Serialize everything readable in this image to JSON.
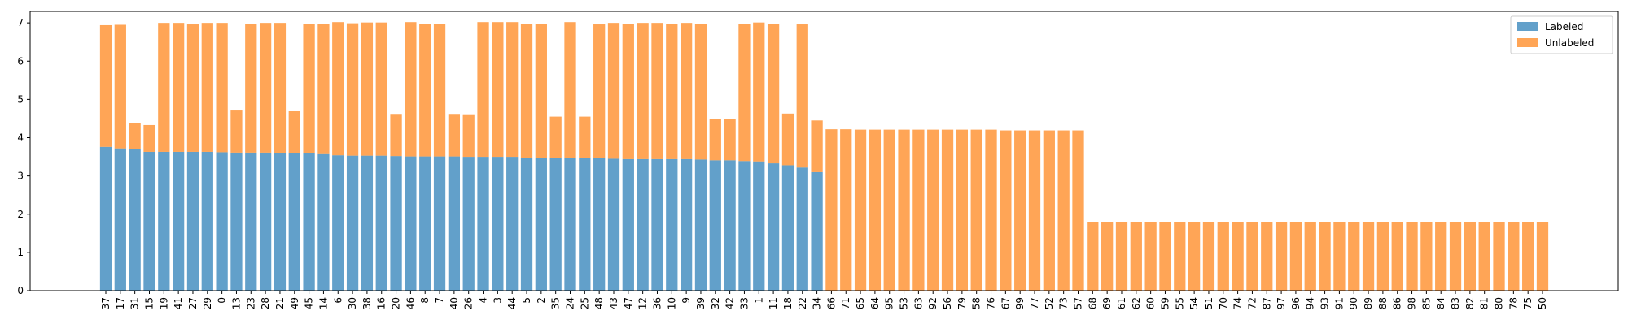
{
  "chart_data": {
    "type": "bar",
    "stacked": true,
    "title": "",
    "xlabel": "",
    "ylabel": "",
    "ylim": [
      0,
      7.3
    ],
    "yticks": [
      0,
      1,
      2,
      3,
      4,
      5,
      6,
      7
    ],
    "grid": false,
    "legend_position": "top-right",
    "categories": [
      "37",
      "17",
      "31",
      "15",
      "19",
      "41",
      "27",
      "29",
      "0",
      "13",
      "23",
      "28",
      "21",
      "49",
      "45",
      "14",
      "6",
      "30",
      "38",
      "16",
      "20",
      "46",
      "8",
      "7",
      "40",
      "26",
      "4",
      "3",
      "44",
      "5",
      "2",
      "35",
      "24",
      "25",
      "48",
      "43",
      "47",
      "12",
      "36",
      "10",
      "9",
      "39",
      "32",
      "42",
      "33",
      "1",
      "11",
      "18",
      "22",
      "34",
      "66",
      "71",
      "65",
      "64",
      "95",
      "53",
      "63",
      "92",
      "56",
      "79",
      "58",
      "76",
      "67",
      "99",
      "77",
      "52",
      "73",
      "57",
      "68",
      "69",
      "61",
      "62",
      "60",
      "59",
      "55",
      "54",
      "51",
      "70",
      "74",
      "72",
      "87",
      "97",
      "96",
      "94",
      "93",
      "91",
      "90",
      "89",
      "88",
      "86",
      "98",
      "85",
      "84",
      "83",
      "82",
      "81",
      "80",
      "78",
      "75",
      "50"
    ],
    "series": [
      {
        "name": "Labeled",
        "color": "#1f77b4",
        "values": [
          3.76,
          3.72,
          3.7,
          3.63,
          3.63,
          3.63,
          3.63,
          3.63,
          3.62,
          3.61,
          3.61,
          3.61,
          3.6,
          3.59,
          3.59,
          3.57,
          3.54,
          3.53,
          3.53,
          3.53,
          3.52,
          3.51,
          3.51,
          3.51,
          3.51,
          3.5,
          3.5,
          3.5,
          3.5,
          3.48,
          3.47,
          3.46,
          3.46,
          3.46,
          3.46,
          3.45,
          3.44,
          3.44,
          3.44,
          3.44,
          3.44,
          3.43,
          3.41,
          3.41,
          3.39,
          3.38,
          3.33,
          3.28,
          3.22,
          3.1,
          0,
          0,
          0,
          0,
          0,
          0,
          0,
          0,
          0,
          0,
          0,
          0,
          0,
          0,
          0,
          0,
          0,
          0,
          0,
          0,
          0,
          0,
          0,
          0,
          0,
          0,
          0,
          0,
          0,
          0,
          0,
          0,
          0,
          0,
          0,
          0,
          0,
          0,
          0,
          0,
          0,
          0,
          0,
          0,
          0,
          0,
          0,
          0,
          0,
          0
        ]
      },
      {
        "name": "Unlabeled",
        "color": "#ff7f0e",
        "values": [
          3.18,
          3.23,
          0.68,
          0.7,
          3.37,
          3.37,
          3.33,
          3.37,
          3.38,
          1.1,
          3.37,
          3.39,
          3.4,
          1.1,
          3.39,
          3.41,
          3.48,
          3.46,
          3.48,
          3.48,
          1.08,
          3.51,
          3.47,
          3.47,
          1.09,
          1.09,
          3.52,
          3.52,
          3.52,
          3.49,
          3.5,
          1.09,
          3.56,
          1.09,
          3.5,
          3.55,
          3.53,
          3.56,
          3.56,
          3.53,
          3.56,
          3.55,
          1.08,
          1.08,
          3.58,
          3.63,
          3.65,
          1.35,
          3.74,
          1.35,
          4.22,
          4.22,
          4.21,
          4.21,
          4.21,
          4.21,
          4.21,
          4.21,
          4.21,
          4.21,
          4.21,
          4.21,
          4.19,
          4.19,
          4.19,
          4.19,
          4.19,
          4.19,
          1.8,
          1.8,
          1.8,
          1.8,
          1.8,
          1.8,
          1.8,
          1.8,
          1.8,
          1.8,
          1.8,
          1.8,
          1.8,
          1.8,
          1.8,
          1.8,
          1.8,
          1.8,
          1.8,
          1.8,
          1.8,
          1.8,
          1.8,
          1.8,
          1.8,
          1.8,
          1.8,
          1.8,
          1.8,
          1.8,
          1.8,
          1.8
        ]
      }
    ]
  }
}
